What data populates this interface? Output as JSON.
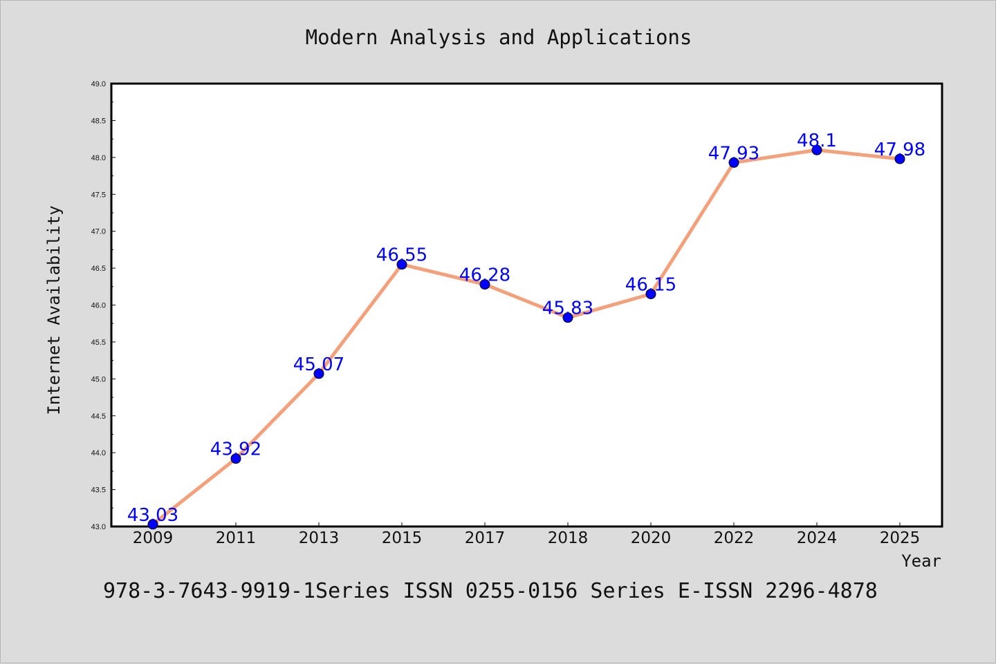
{
  "chart_data": {
    "type": "line",
    "title": "Modern Analysis and Applications",
    "xlabel": "Year",
    "ylabel": "Internet Availability",
    "categories": [
      "2009",
      "2011",
      "2013",
      "2015",
      "2017",
      "2018",
      "2020",
      "2022",
      "2024",
      "2025"
    ],
    "series": [
      {
        "values": [
          43.03,
          43.92,
          45.07,
          46.55,
          46.28,
          45.83,
          46.15,
          47.93,
          48.1,
          47.98
        ],
        "labels": [
          "43.03",
          "43.92",
          "45.07",
          "46.55",
          "46.28",
          "45.83",
          "46.15",
          "47.93",
          "48.1",
          "47.98"
        ],
        "line_color": "#f4a07a",
        "marker_color": "#0000ff"
      }
    ],
    "ylim": [
      43.0,
      49.0
    ],
    "yticks": [
      "43.0",
      "43.5",
      "44.0",
      "44.5",
      "45.0",
      "45.5",
      "46.0",
      "46.5",
      "47.0",
      "47.5",
      "48.0",
      "48.5",
      "49.0"
    ],
    "grid": false,
    "legend": "none"
  },
  "footer": "978-3-7643-9919-1Series ISSN 0255-0156 Series E-ISSN 2296-4878"
}
